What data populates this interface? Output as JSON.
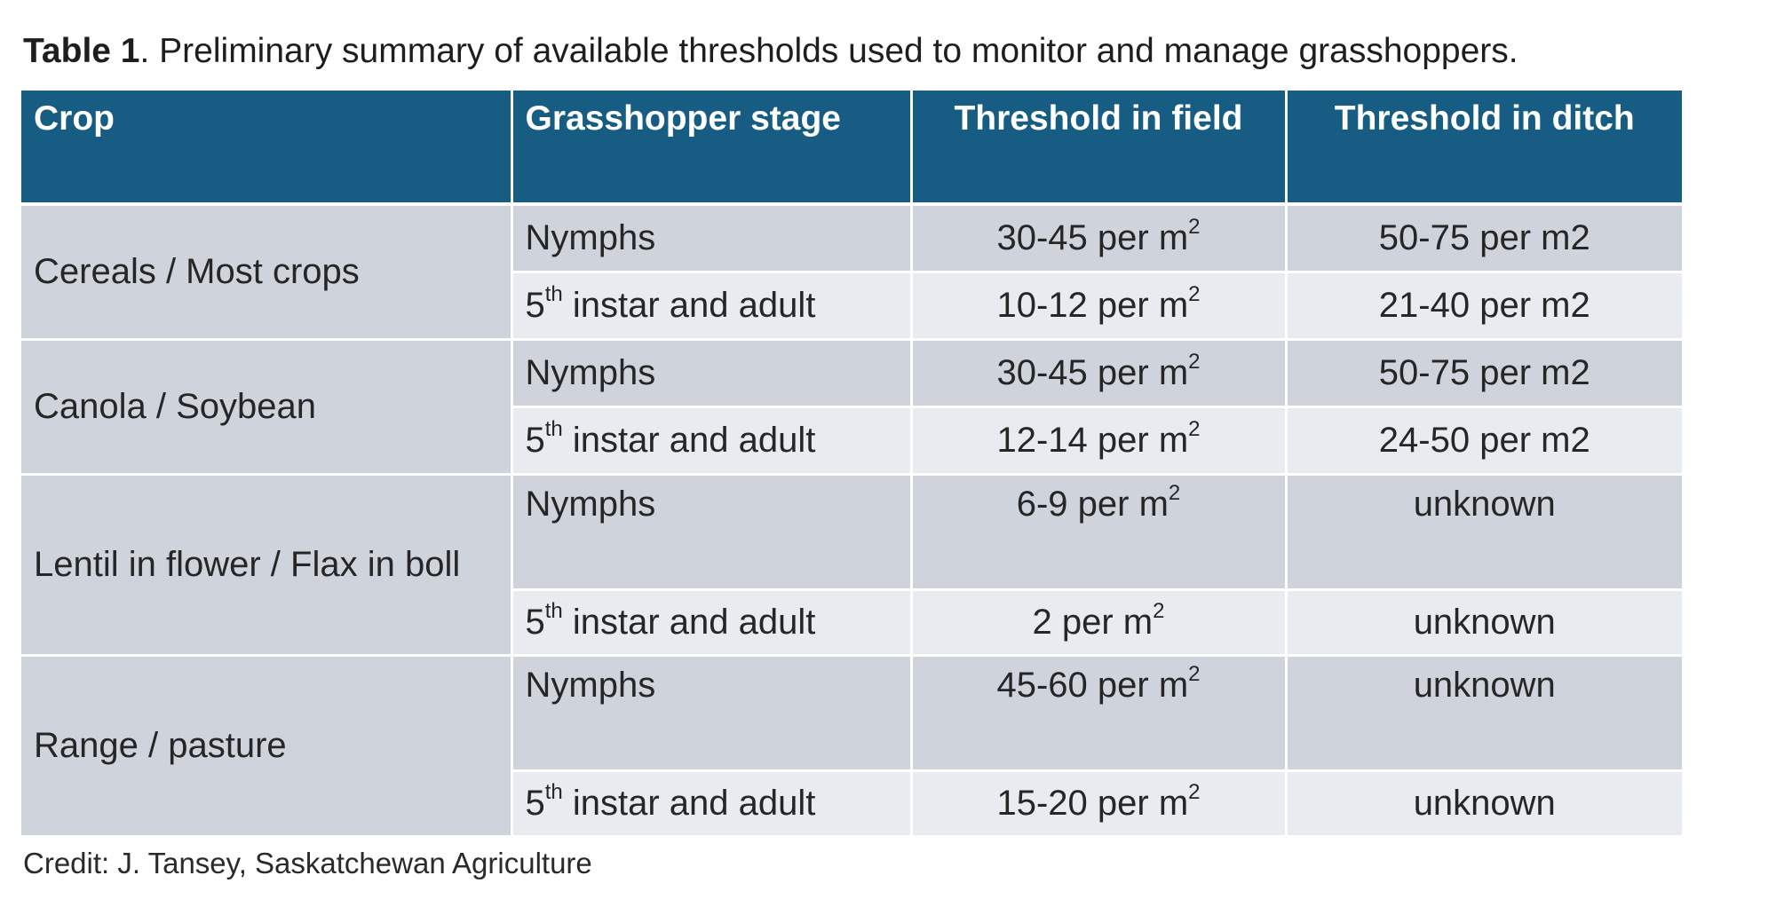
{
  "caption": {
    "label": "Table 1",
    "text": ". Preliminary summary of available thresholds used to monitor and manage grasshoppers."
  },
  "table": {
    "headers": [
      "Crop",
      "Grasshopper stage",
      "Threshold in field",
      "Threshold in ditch"
    ],
    "groups": [
      {
        "crop": "Cereals / Most crops",
        "rows": [
          {
            "stage_base": "Nymphs",
            "stage_sup": "",
            "stage_rest": "",
            "field": "30-45 per m",
            "field_sup": "2",
            "ditch": "50-75 per m2"
          },
          {
            "stage_base": "5",
            "stage_sup": "th",
            "stage_rest": " instar and adult",
            "field": "10-12 per m",
            "field_sup": "2",
            "ditch": "21-40 per m2"
          }
        ]
      },
      {
        "crop": "Canola / Soybean",
        "rows": [
          {
            "stage_base": "Nymphs",
            "stage_sup": "",
            "stage_rest": "",
            "field": "30-45 per m",
            "field_sup": "2",
            "ditch": "50-75 per m2"
          },
          {
            "stage_base": "5",
            "stage_sup": "th",
            "stage_rest": " instar and adult",
            "field": "12-14 per m",
            "field_sup": "2",
            "ditch": "24-50 per m2"
          }
        ]
      },
      {
        "crop": "Lentil in flower / Flax in boll",
        "rows": [
          {
            "stage_base": "Nymphs",
            "stage_sup": "",
            "stage_rest": "",
            "field": "6-9 per m",
            "field_sup": "2",
            "ditch": "unknown"
          },
          {
            "stage_base": "5",
            "stage_sup": "th",
            "stage_rest": " instar and adult",
            "field": "2 per m",
            "field_sup": "2",
            "ditch": "unknown"
          }
        ]
      },
      {
        "crop": "Range / pasture",
        "rows": [
          {
            "stage_base": "Nymphs",
            "stage_sup": "",
            "stage_rest": "",
            "field": "45-60  per m",
            "field_sup": "2",
            "ditch": "unknown"
          },
          {
            "stage_base": "5",
            "stage_sup": "th",
            "stage_rest": " instar and adult",
            "field": "15-20 per m",
            "field_sup": "2",
            "ditch": "unknown"
          }
        ]
      }
    ]
  },
  "credit": "Credit: J. Tansey, Saskatchewan Agriculture",
  "colors": {
    "header_bg": "#175c82",
    "crop_bg": "#cfd4dc",
    "row_dark": "#cfd4dc",
    "row_light": "#e8ebef"
  }
}
